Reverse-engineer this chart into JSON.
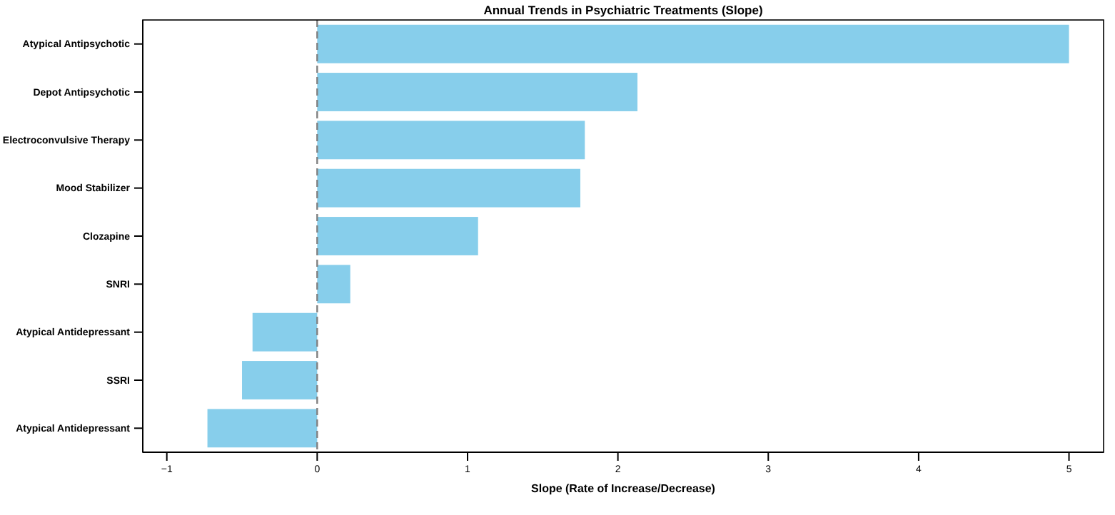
{
  "chart_data": {
    "type": "bar",
    "orientation": "horizontal",
    "title": "Annual Trends in Psychiatric Treatments (Slope)",
    "xlabel": "Slope (Rate of Increase/Decrease)",
    "categories": [
      "Atypical Antipsychotic",
      "Depot Antipsychotic",
      "Electroconvulsive Therapy",
      "Mood Stabilizer",
      "Clozapine",
      "SNRI",
      "Atypical Antidepressant",
      "SSRI",
      "Atypical Antidepressant"
    ],
    "values": [
      5.0,
      2.13,
      1.78,
      1.75,
      1.07,
      0.22,
      -0.43,
      -0.5,
      -0.73
    ],
    "color": "#87ceeb",
    "xlim": [
      -1.16,
      5.23
    ],
    "xticks": [
      -1,
      0,
      1,
      2,
      3,
      4,
      5
    ],
    "ref_lines": [
      {
        "axis": "x",
        "value": 0,
        "color": "#808080",
        "line_style": "dashed"
      }
    ],
    "grid": false
  }
}
